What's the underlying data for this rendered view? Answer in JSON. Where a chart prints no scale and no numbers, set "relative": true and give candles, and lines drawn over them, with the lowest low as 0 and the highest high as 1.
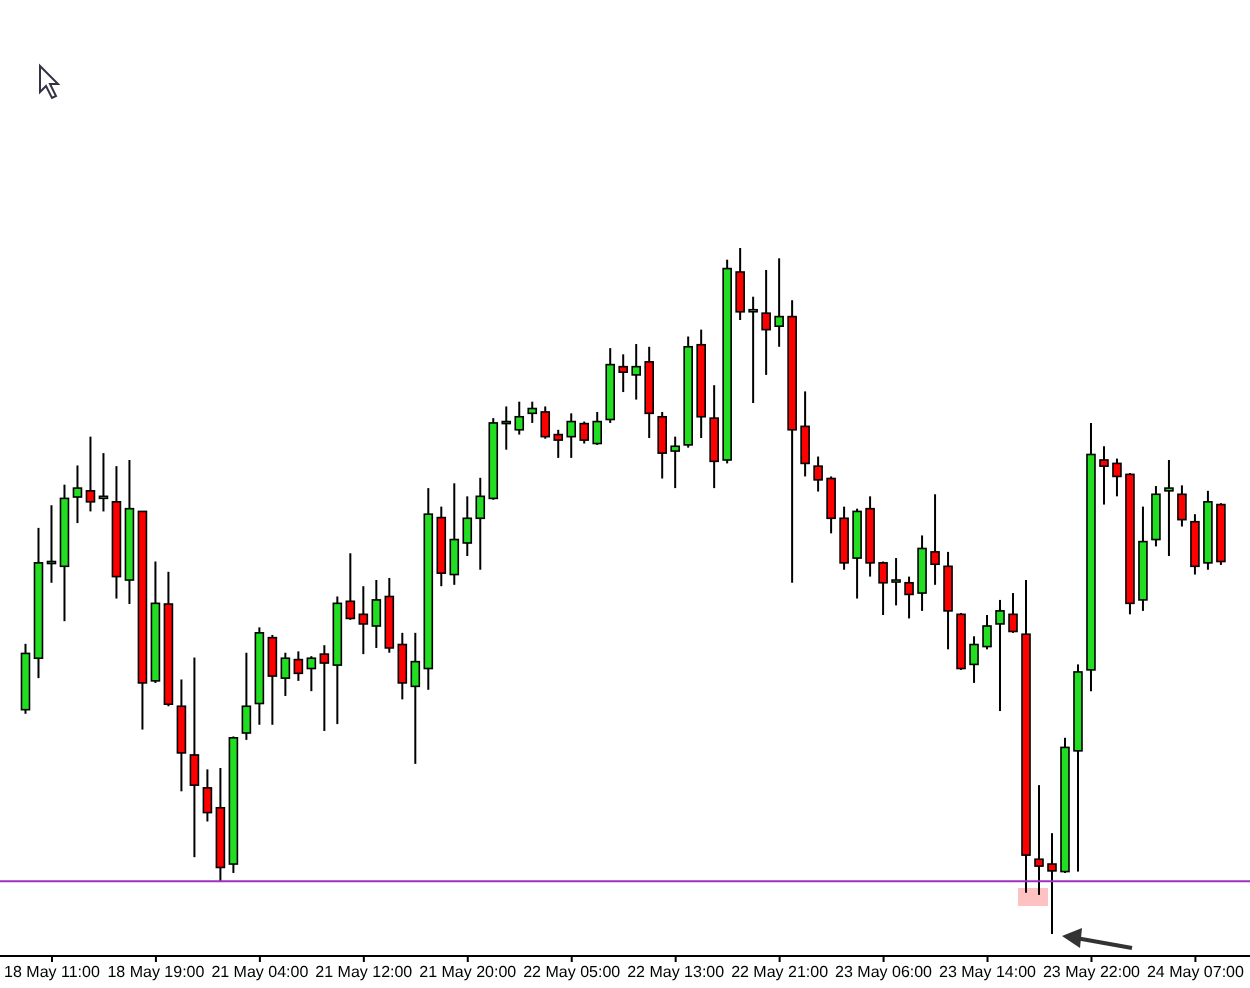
{
  "chart_data": {
    "type": "candlestick",
    "relative": true,
    "tick_labels": "x",
    "categories": [
      null,
      null,
      "18 May 11:00",
      null,
      null,
      null,
      null,
      null,
      null,
      null,
      "18 May 19:00",
      null,
      null,
      null,
      null,
      null,
      null,
      null,
      "21 May 04:00",
      null,
      null,
      null,
      null,
      null,
      null,
      null,
      "21 May 12:00",
      null,
      null,
      null,
      null,
      null,
      null,
      null,
      "21 May 20:00",
      null,
      null,
      null,
      null,
      null,
      null,
      null,
      "22 May 05:00",
      null,
      null,
      null,
      null,
      null,
      null,
      null,
      "22 May 13:00",
      null,
      null,
      null,
      null,
      null,
      null,
      null,
      "22 May 21:00",
      null,
      null,
      null,
      null,
      null,
      null,
      null,
      "23 May 06:00",
      null,
      null,
      null,
      null,
      null,
      null,
      null,
      "23 May 14:00",
      null,
      null,
      null,
      null,
      null,
      null,
      null,
      "23 May 22:00",
      null,
      null,
      null,
      null,
      null,
      null,
      null,
      "24 May 07:00",
      null,
      null
    ],
    "ohlc": [
      [
        0.327,
        0.423,
        0.321,
        0.409
      ],
      [
        0.402,
        0.592,
        0.373,
        0.541
      ],
      [
        0.543,
        0.625,
        0.512,
        0.543
      ],
      [
        0.536,
        0.655,
        0.456,
        0.635
      ],
      [
        0.637,
        0.683,
        0.599,
        0.65
      ],
      [
        0.646,
        0.725,
        0.616,
        0.63
      ],
      [
        0.638,
        0.701,
        0.616,
        0.638
      ],
      [
        0.63,
        0.682,
        0.489,
        0.521
      ],
      [
        0.516,
        0.691,
        0.481,
        0.62
      ],
      [
        0.616,
        0.616,
        0.298,
        0.366
      ],
      [
        0.369,
        0.543,
        0.366,
        0.482
      ],
      [
        0.481,
        0.528,
        0.332,
        0.335
      ],
      [
        0.332,
        0.371,
        0.208,
        0.264
      ],
      [
        0.261,
        0.403,
        0.112,
        0.217
      ],
      [
        0.213,
        0.24,
        0.164,
        0.177
      ],
      [
        0.184,
        0.242,
        0.077,
        0.097
      ],
      [
        0.102,
        0.288,
        0.089,
        0.286
      ],
      [
        0.293,
        0.41,
        0.283,
        0.332
      ],
      [
        0.336,
        0.447,
        0.305,
        0.439
      ],
      [
        0.432,
        0.436,
        0.305,
        0.376
      ],
      [
        0.373,
        0.41,
        0.347,
        0.402
      ],
      [
        0.4,
        0.412,
        0.369,
        0.38
      ],
      [
        0.387,
        0.405,
        0.354,
        0.402
      ],
      [
        0.408,
        0.421,
        0.296,
        0.395
      ],
      [
        0.392,
        0.492,
        0.306,
        0.482
      ],
      [
        0.485,
        0.555,
        0.458,
        0.46
      ],
      [
        0.466,
        0.507,
        0.408,
        0.452
      ],
      [
        0.449,
        0.516,
        0.417,
        0.487
      ],
      [
        0.492,
        0.519,
        0.41,
        0.417
      ],
      [
        0.422,
        0.439,
        0.342,
        0.366
      ],
      [
        0.361,
        0.439,
        0.248,
        0.397
      ],
      [
        0.387,
        0.65,
        0.356,
        0.612
      ],
      [
        0.607,
        0.623,
        0.507,
        0.526
      ],
      [
        0.524,
        0.657,
        0.509,
        0.575
      ],
      [
        0.57,
        0.638,
        0.551,
        0.606
      ],
      [
        0.606,
        0.665,
        0.531,
        0.638
      ],
      [
        0.635,
        0.752,
        0.633,
        0.745
      ],
      [
        0.747,
        0.769,
        0.706,
        0.747
      ],
      [
        0.735,
        0.776,
        0.728,
        0.754
      ],
      [
        0.759,
        0.776,
        0.745,
        0.766
      ],
      [
        0.761,
        0.769,
        0.722,
        0.725
      ],
      [
        0.728,
        0.735,
        0.694,
        0.72
      ],
      [
        0.725,
        0.759,
        0.694,
        0.747
      ],
      [
        0.744,
        0.747,
        0.715,
        0.72
      ],
      [
        0.715,
        0.761,
        0.713,
        0.747
      ],
      [
        0.75,
        0.854,
        0.745,
        0.83
      ],
      [
        0.827,
        0.845,
        0.79,
        0.819
      ],
      [
        0.815,
        0.86,
        0.779,
        0.827
      ],
      [
        0.834,
        0.856,
        0.723,
        0.759
      ],
      [
        0.754,
        0.761,
        0.664,
        0.701
      ],
      [
        0.704,
        0.725,
        0.65,
        0.711
      ],
      [
        0.713,
        0.871,
        0.709,
        0.856
      ],
      [
        0.859,
        0.881,
        0.723,
        0.754
      ],
      [
        0.752,
        0.8,
        0.65,
        0.689
      ],
      [
        0.691,
        0.983,
        0.686,
        0.97
      ],
      [
        0.965,
        1.0,
        0.895,
        0.907
      ],
      [
        0.91,
        0.929,
        0.774,
        0.91
      ],
      [
        0.905,
        0.968,
        0.815,
        0.881
      ],
      [
        0.886,
        0.985,
        0.856,
        0.9
      ],
      [
        0.9,
        0.924,
        0.512,
        0.735
      ],
      [
        0.74,
        0.791,
        0.667,
        0.686
      ],
      [
        0.682,
        0.696,
        0.645,
        0.662
      ],
      [
        0.664,
        0.667,
        0.584,
        0.606
      ],
      [
        0.606,
        0.623,
        0.531,
        0.541
      ],
      [
        0.548,
        0.62,
        0.489,
        0.616
      ],
      [
        0.62,
        0.638,
        0.521,
        0.541
      ],
      [
        0.541,
        0.543,
        0.465,
        0.512
      ],
      [
        0.516,
        0.548,
        0.479,
        0.516
      ],
      [
        0.512,
        0.521,
        0.46,
        0.495
      ],
      [
        0.497,
        0.581,
        0.471,
        0.562
      ],
      [
        0.557,
        0.641,
        0.509,
        0.539
      ],
      [
        0.536,
        0.557,
        0.415,
        0.471
      ],
      [
        0.466,
        0.468,
        0.385,
        0.387
      ],
      [
        0.393,
        0.434,
        0.366,
        0.422
      ],
      [
        0.419,
        0.465,
        0.415,
        0.449
      ],
      [
        0.452,
        0.487,
        0.325,
        0.471
      ],
      [
        0.466,
        0.497,
        0.439,
        0.441
      ],
      [
        0.437,
        0.516,
        0.06,
        0.115
      ],
      [
        0.109,
        0.217,
        0.057,
        0.099
      ],
      [
        0.102,
        0.147,
        0.0,
        0.092
      ],
      [
        0.091,
        0.286,
        0.089,
        0.272
      ],
      [
        0.267,
        0.393,
        0.091,
        0.382
      ],
      [
        0.385,
        0.745,
        0.354,
        0.699
      ],
      [
        0.691,
        0.711,
        0.626,
        0.682
      ],
      [
        0.686,
        0.693,
        0.638,
        0.667
      ],
      [
        0.67,
        0.672,
        0.466,
        0.482
      ],
      [
        0.487,
        0.623,
        0.471,
        0.572
      ],
      [
        0.575,
        0.653,
        0.565,
        0.641
      ],
      [
        0.646,
        0.691,
        0.551,
        0.65
      ],
      [
        0.641,
        0.654,
        0.594,
        0.604
      ],
      [
        0.601,
        0.612,
        0.524,
        0.536
      ],
      [
        0.541,
        0.646,
        0.531,
        0.63
      ],
      [
        0.626,
        0.628,
        0.538,
        0.543
      ]
    ],
    "colors": [
      "#22dd22",
      "#22dd22",
      "#22dd22",
      "#22dd22",
      "#22dd22",
      "#ff0000",
      "#90ee90",
      "#ff0000",
      "#22dd22",
      "#ff0000",
      "#22dd22",
      "#ff0000",
      "#ff0000",
      "#ff0000",
      "#ff0000",
      "#ff0000",
      "#22dd22",
      "#22dd22",
      "#22dd22",
      "#ff0000",
      "#22dd22",
      "#ff0000",
      "#22dd22",
      "#ff0000",
      "#22dd22",
      "#ff0000",
      "#ff0000",
      "#22dd22",
      "#ff0000",
      "#ff0000",
      "#22dd22",
      "#22dd22",
      "#ff0000",
      "#22dd22",
      "#22dd22",
      "#22dd22",
      "#22dd22",
      "#22dd22",
      "#22dd22",
      "#22dd22",
      "#ff0000",
      "#ff0000",
      "#22dd22",
      "#ff0000",
      "#22dd22",
      "#22dd22",
      "#ff0000",
      "#22dd22",
      "#ff0000",
      "#ff0000",
      "#22dd22",
      "#22dd22",
      "#ff0000",
      "#ff0000",
      "#22dd22",
      "#ff0000",
      "#90ee90",
      "#ff0000",
      "#22dd22",
      "#ff0000",
      "#ff0000",
      "#ff0000",
      "#ff0000",
      "#ff0000",
      "#22dd22",
      "#ff0000",
      "#ff0000",
      "#90ee90",
      "#ff0000",
      "#22dd22",
      "#ff0000",
      "#ff0000",
      "#ff0000",
      "#22dd22",
      "#22dd22",
      "#22dd22",
      "#ff0000",
      "#ff0000",
      "#ff0000",
      "#ff0000",
      "#22dd22",
      "#22dd22",
      "#22dd22",
      "#ff0000",
      "#ff0000",
      "#ff0000",
      "#22dd22",
      "#22dd22",
      "#22dd22",
      "#ff0000",
      "#ff0000",
      "#22dd22",
      "#ff0000"
    ],
    "ref_lines": [
      {
        "axis": "y",
        "value": 0.077,
        "color": "#a030c0"
      }
    ]
  }
}
